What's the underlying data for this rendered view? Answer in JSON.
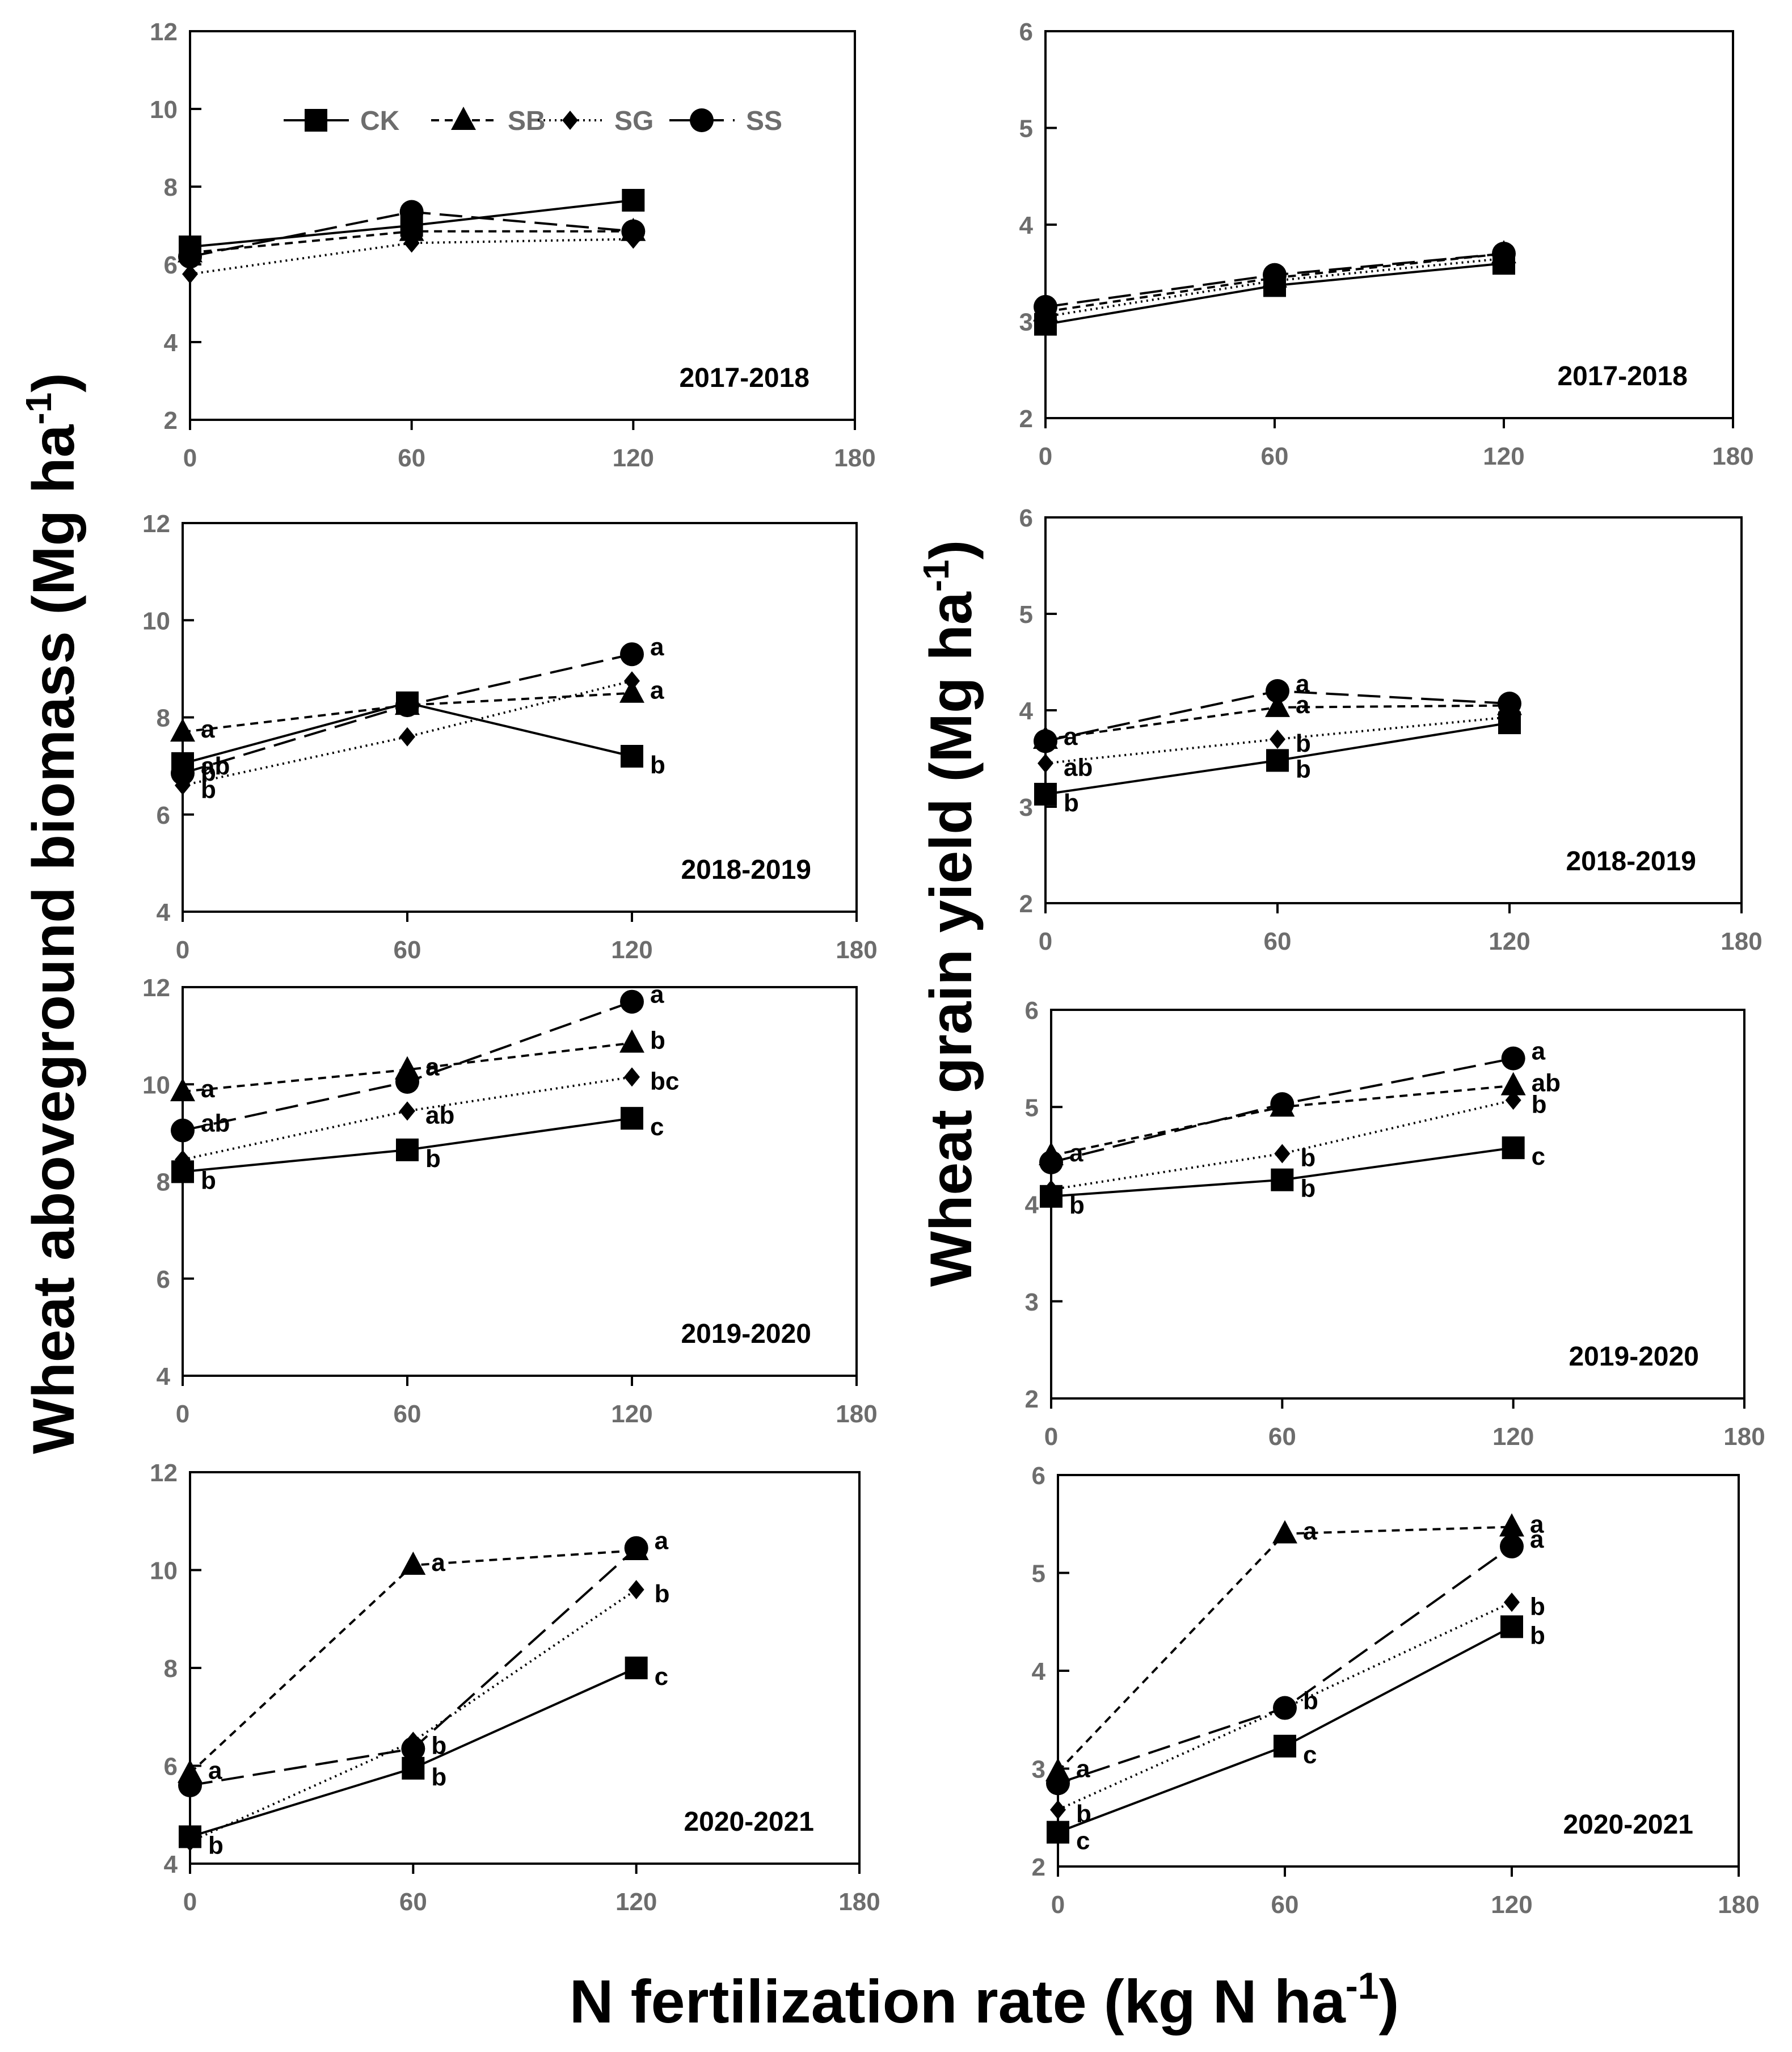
{
  "figure": {
    "y_title_left": "Wheat aboveground biomass (Mg ha",
    "y_title_right": "Wheat grain yield (Mg ha",
    "x_title": "N fertilization rate (kg N ha",
    "unit_superscript": "-1"
  },
  "legend": [
    {
      "name": "CK",
      "marker": "square",
      "dash": "solid"
    },
    {
      "name": "SB",
      "marker": "triangle",
      "dash": "short-dash"
    },
    {
      "name": "SG",
      "marker": "diamond",
      "dash": "dotted"
    },
    {
      "name": "SS",
      "marker": "circle",
      "dash": "long-dash"
    }
  ],
  "chart_data": [
    {
      "type": "line",
      "panel": "biomass-2017-2018",
      "year_label": "2017-2018",
      "x": [
        0,
        60,
        120
      ],
      "xticks": [
        "0",
        "60",
        "120",
        "180"
      ],
      "xlim": [
        0,
        180
      ],
      "ylim": [
        2,
        12
      ],
      "yticks": [
        "2",
        "4",
        "6",
        "8",
        "10",
        "12"
      ],
      "ylabel": "Wheat aboveground biomass (Mg ha-1)",
      "xlabel": "N fertilization rate (kg N ha-1)",
      "series": [
        {
          "name": "CK",
          "values": [
            6.45,
            7.0,
            7.65
          ],
          "letters": [
            "",
            "",
            ""
          ]
        },
        {
          "name": "SB",
          "values": [
            6.3,
            6.85,
            6.85
          ],
          "letters": [
            "",
            "",
            ""
          ]
        },
        {
          "name": "SG",
          "values": [
            5.75,
            6.55,
            6.65
          ],
          "letters": [
            "",
            "",
            ""
          ]
        },
        {
          "name": "SS",
          "values": [
            6.2,
            7.35,
            6.85
          ],
          "letters": [
            "",
            "",
            ""
          ]
        }
      ]
    },
    {
      "type": "line",
      "panel": "grain-2017-2018",
      "year_label": "2017-2018",
      "x": [
        0,
        60,
        120
      ],
      "xticks": [
        "0",
        "60",
        "120",
        "180"
      ],
      "xlim": [
        0,
        180
      ],
      "ylim": [
        2,
        6
      ],
      "yticks": [
        "2",
        "3",
        "4",
        "5",
        "6"
      ],
      "ylabel": "Wheat grain yield (Mg ha-1)",
      "xlabel": "N fertilization rate (kg N ha-1)",
      "series": [
        {
          "name": "CK",
          "values": [
            2.97,
            3.37,
            3.6
          ],
          "letters": [
            "",
            "",
            ""
          ]
        },
        {
          "name": "SB",
          "values": [
            3.1,
            3.45,
            3.7
          ],
          "letters": [
            "",
            "",
            ""
          ]
        },
        {
          "name": "SG",
          "values": [
            3.05,
            3.42,
            3.65
          ],
          "letters": [
            "",
            "",
            ""
          ]
        },
        {
          "name": "SS",
          "values": [
            3.15,
            3.48,
            3.7
          ],
          "letters": [
            "",
            "",
            ""
          ]
        }
      ]
    },
    {
      "type": "line",
      "panel": "biomass-2018-2019",
      "year_label": "2018-2019",
      "x": [
        0,
        60,
        120
      ],
      "xticks": [
        "0",
        "60",
        "120",
        "180"
      ],
      "xlim": [
        0,
        180
      ],
      "ylim": [
        4,
        12
      ],
      "yticks": [
        "4",
        "6",
        "8",
        "10",
        "12"
      ],
      "ylabel": "Wheat aboveground biomass (Mg ha-1)",
      "xlabel": "N fertilization rate (kg N ha-1)",
      "series": [
        {
          "name": "CK",
          "values": [
            7.05,
            8.3,
            7.2
          ],
          "letters": [
            "b",
            "",
            "b"
          ]
        },
        {
          "name": "SB",
          "values": [
            7.7,
            8.25,
            8.5
          ],
          "letters": [
            "a",
            "",
            "a"
          ]
        },
        {
          "name": "SG",
          "values": [
            6.6,
            7.6,
            8.75
          ],
          "letters": [
            "b",
            "",
            ""
          ]
        },
        {
          "name": "SS",
          "values": [
            6.85,
            8.25,
            9.3
          ],
          "letters": [
            "ab",
            "",
            "a"
          ]
        }
      ]
    },
    {
      "type": "line",
      "panel": "grain-2018-2019",
      "year_label": "2018-2019",
      "x": [
        0,
        60,
        120
      ],
      "xticks": [
        "0",
        "60",
        "120",
        "180"
      ],
      "xlim": [
        0,
        180
      ],
      "ylim": [
        2,
        6
      ],
      "yticks": [
        "2",
        "3",
        "4",
        "5",
        "6"
      ],
      "ylabel": "Wheat grain yield (Mg ha-1)",
      "xlabel": "N fertilization rate (kg N ha-1)",
      "series": [
        {
          "name": "CK",
          "values": [
            3.13,
            3.48,
            3.87
          ],
          "letters": [
            "b",
            "b",
            ""
          ]
        },
        {
          "name": "SB",
          "values": [
            3.7,
            4.03,
            4.05
          ],
          "letters": [
            "a",
            "a",
            ""
          ]
        },
        {
          "name": "SG",
          "values": [
            3.45,
            3.7,
            3.93
          ],
          "letters": [
            "ab",
            "b",
            ""
          ]
        },
        {
          "name": "SS",
          "values": [
            3.68,
            4.2,
            4.07
          ],
          "letters": [
            "",
            "a",
            ""
          ]
        }
      ]
    },
    {
      "type": "line",
      "panel": "biomass-2019-2020",
      "year_label": "2019-2020",
      "x": [
        0,
        60,
        120
      ],
      "xticks": [
        "0",
        "60",
        "120",
        "180"
      ],
      "xlim": [
        0,
        180
      ],
      "ylim": [
        4,
        12
      ],
      "yticks": [
        "4",
        "6",
        "8",
        "10",
        "12"
      ],
      "ylabel": "Wheat aboveground biomass (Mg ha-1)",
      "xlabel": "N fertilization rate (kg N ha-1)",
      "series": [
        {
          "name": "CK",
          "values": [
            8.2,
            8.65,
            9.3
          ],
          "letters": [
            "b",
            "b",
            "c"
          ]
        },
        {
          "name": "SB",
          "values": [
            9.85,
            10.3,
            10.85
          ],
          "letters": [
            "a",
            "a",
            "b"
          ]
        },
        {
          "name": "SG",
          "values": [
            8.45,
            9.45,
            10.15
          ],
          "letters": [
            "",
            "ab",
            "bc"
          ]
        },
        {
          "name": "SS",
          "values": [
            9.05,
            10.05,
            11.7
          ],
          "letters": [
            "ab",
            "",
            "a"
          ]
        }
      ]
    },
    {
      "type": "line",
      "panel": "grain-2019-2020",
      "year_label": "2019-2020",
      "x": [
        0,
        60,
        120
      ],
      "xticks": [
        "0",
        "60",
        "120",
        "180"
      ],
      "xlim": [
        0,
        180
      ],
      "ylim": [
        2,
        6
      ],
      "yticks": [
        "2",
        "3",
        "4",
        "5",
        "6"
      ],
      "ylabel": "Wheat grain yield (Mg ha-1)",
      "xlabel": "N fertilization rate (kg N ha-1)",
      "series": [
        {
          "name": "CK",
          "values": [
            4.08,
            4.25,
            4.58
          ],
          "letters": [
            "b",
            "b",
            "c"
          ]
        },
        {
          "name": "SB",
          "values": [
            4.5,
            5.0,
            5.22
          ],
          "letters": [
            "a",
            "",
            "ab"
          ]
        },
        {
          "name": "SG",
          "values": [
            4.15,
            4.52,
            5.07
          ],
          "letters": [
            "",
            "b",
            "b"
          ]
        },
        {
          "name": "SS",
          "values": [
            4.43,
            5.03,
            5.5
          ],
          "letters": [
            "",
            "",
            "a"
          ]
        }
      ]
    },
    {
      "type": "line",
      "panel": "biomass-2020-2021",
      "year_label": "2020-2021",
      "x": [
        0,
        60,
        120
      ],
      "xticks": [
        "0",
        "60",
        "120",
        "180"
      ],
      "xlim": [
        0,
        180
      ],
      "ylim": [
        4,
        12
      ],
      "yticks": [
        "4",
        "6",
        "8",
        "10",
        "12"
      ],
      "ylabel": "Wheat aboveground biomass (Mg ha-1)",
      "xlabel": "N fertilization rate (kg N ha-1)",
      "series": [
        {
          "name": "CK",
          "values": [
            4.55,
            5.95,
            8.0
          ],
          "letters": [
            "b",
            "b",
            "c"
          ]
        },
        {
          "name": "SB",
          "values": [
            5.85,
            10.1,
            10.4
          ],
          "letters": [
            "a",
            "a",
            ""
          ]
        },
        {
          "name": "SG",
          "values": [
            4.45,
            6.5,
            9.6
          ],
          "letters": [
            "",
            "b",
            "b"
          ]
        },
        {
          "name": "SS",
          "values": [
            5.6,
            6.35,
            10.45
          ],
          "letters": [
            "",
            "",
            "a"
          ]
        }
      ]
    },
    {
      "type": "line",
      "panel": "grain-2020-2021",
      "year_label": "2020-2021",
      "x": [
        0,
        60,
        120
      ],
      "xticks": [
        "0",
        "60",
        "120",
        "180"
      ],
      "xlim": [
        0,
        180
      ],
      "ylim": [
        2,
        6
      ],
      "yticks": [
        "2",
        "3",
        "4",
        "5",
        "6"
      ],
      "ylabel": "Wheat grain yield (Mg ha-1)",
      "xlabel": "N fertilization rate (kg N ha-1)",
      "series": [
        {
          "name": "CK",
          "values": [
            2.35,
            3.23,
            4.45
          ],
          "letters": [
            "c",
            "c",
            "b"
          ]
        },
        {
          "name": "SB",
          "values": [
            2.97,
            5.4,
            5.47
          ],
          "letters": [
            "a",
            "a",
            "a"
          ]
        },
        {
          "name": "SG",
          "values": [
            2.58,
            3.62,
            4.7
          ],
          "letters": [
            "b",
            "",
            "b"
          ]
        },
        {
          "name": "SS",
          "values": [
            2.85,
            3.62,
            5.27
          ],
          "letters": [
            "",
            "b",
            "a"
          ]
        }
      ]
    }
  ]
}
